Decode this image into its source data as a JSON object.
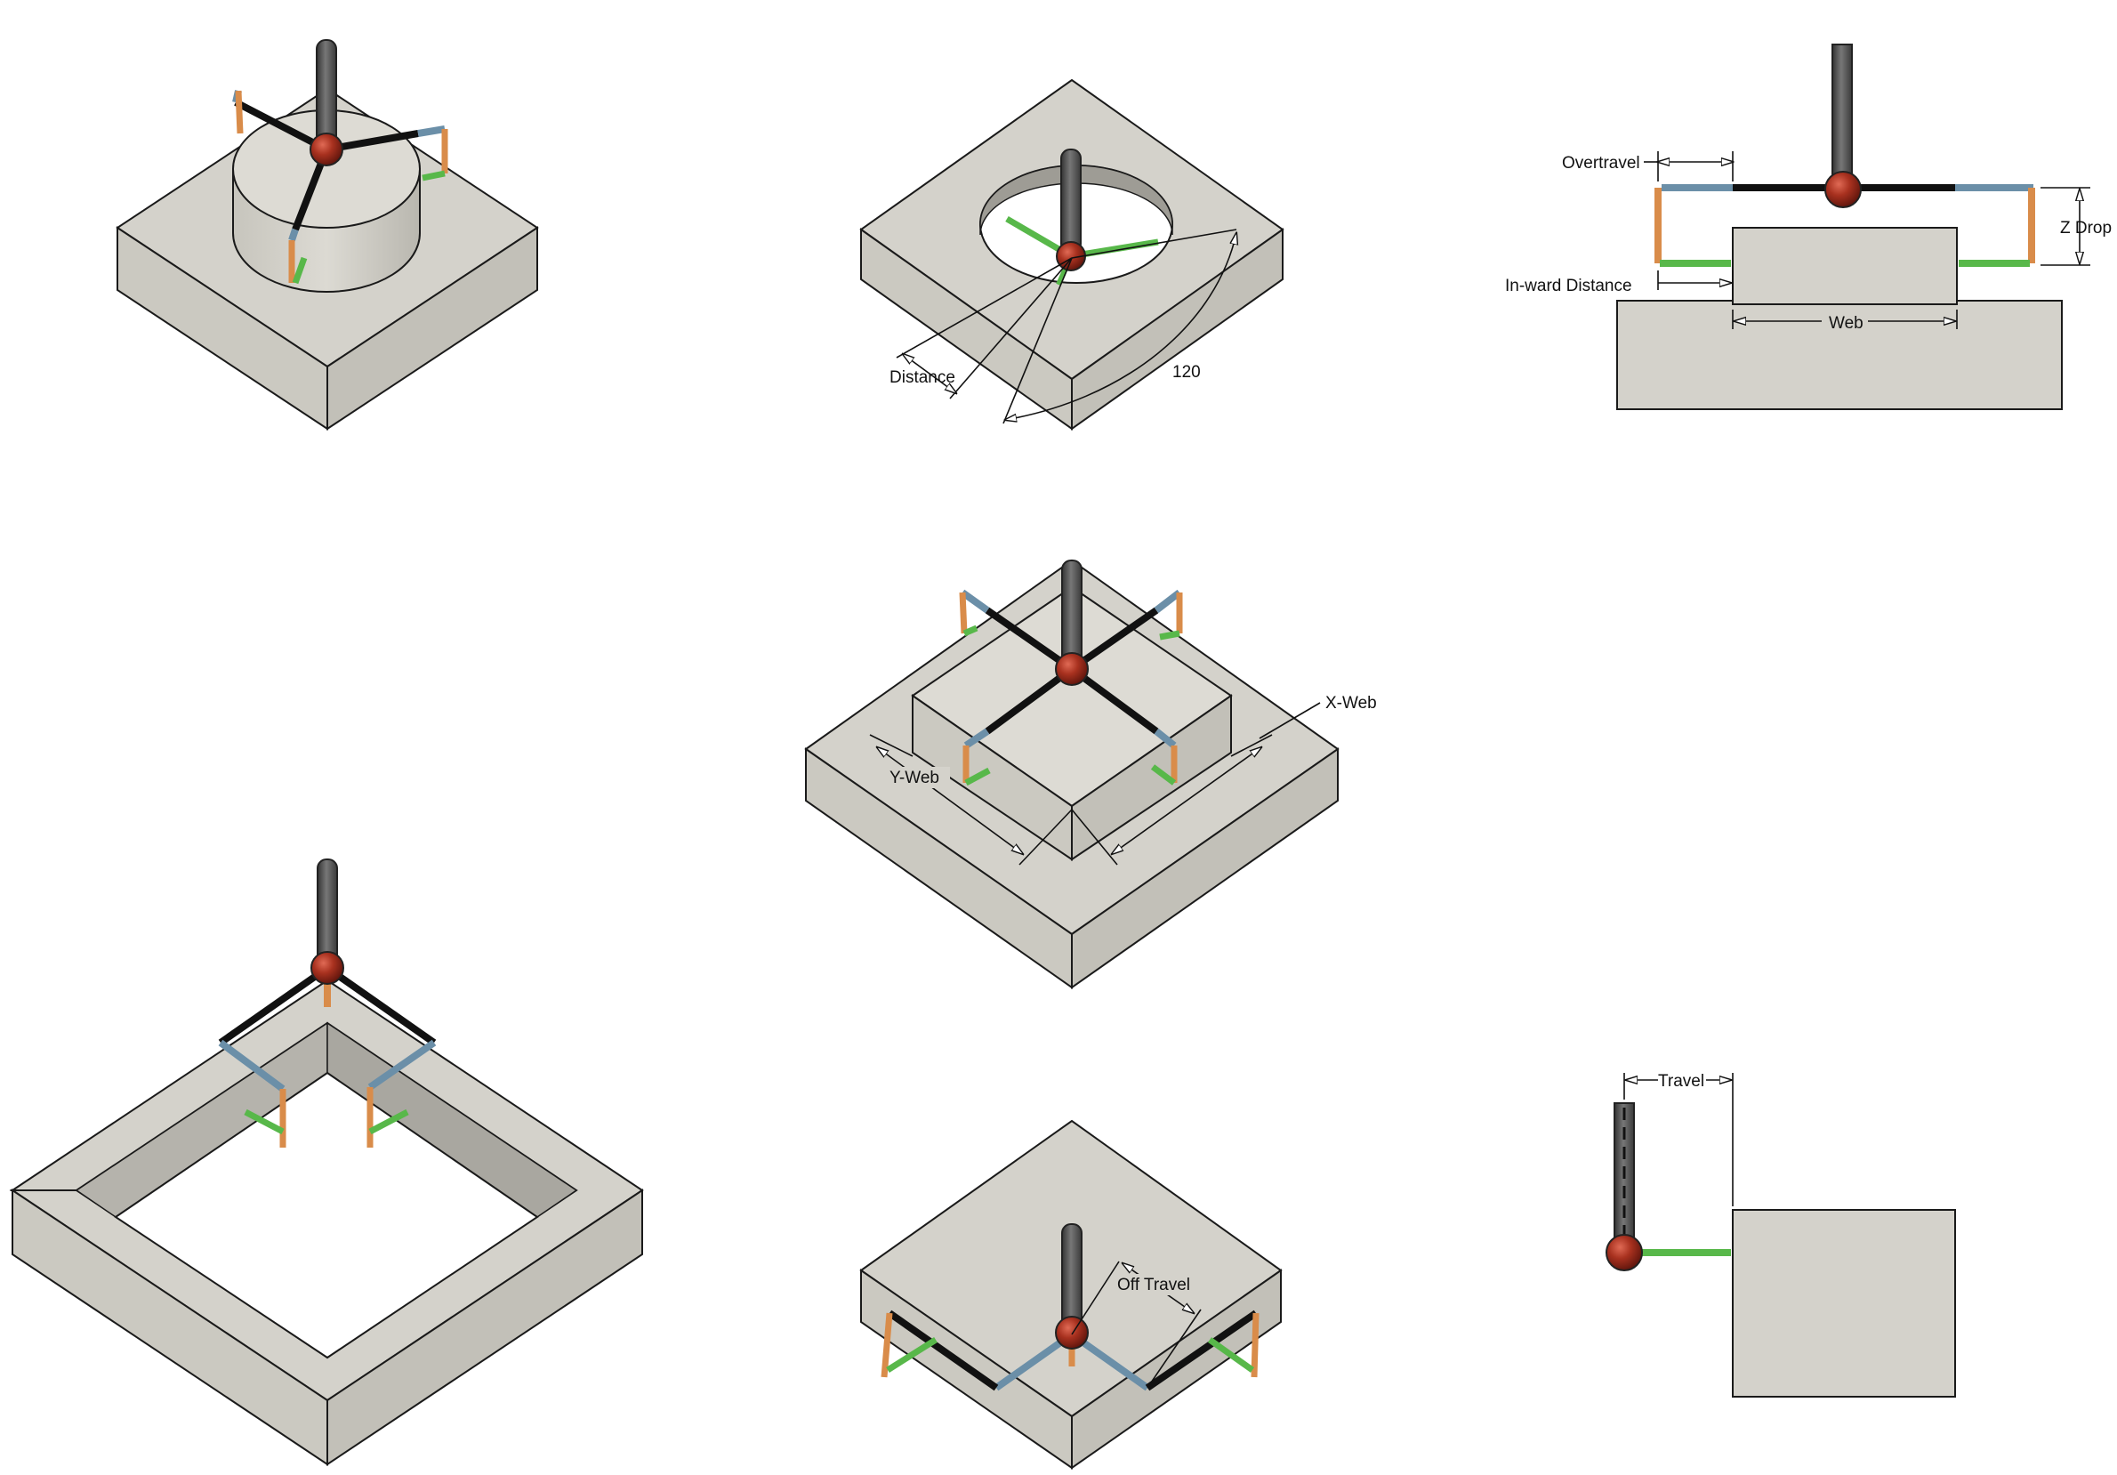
{
  "labels": {
    "distance": "Distance",
    "angle": "120",
    "overtravel": "Overtravel",
    "z_drop": "Z Drop",
    "inward_distance": "In-ward Distance",
    "web": "Web",
    "x_web": "X-Web",
    "y_web": "Y-Web",
    "off_travel": "Off Travel",
    "travel": "Travel"
  },
  "colors": {
    "block_top": "#d4d2cb",
    "block_left": "#cbc9c1",
    "block_right": "#c2c0b8",
    "outline": "#1a1a1a",
    "stylus": "#555555",
    "ball": "#8e2418",
    "arm": "#111111",
    "blue_segment": "#6b8fa8",
    "orange_segment": "#d98c4a",
    "green_segment": "#58b84a"
  }
}
